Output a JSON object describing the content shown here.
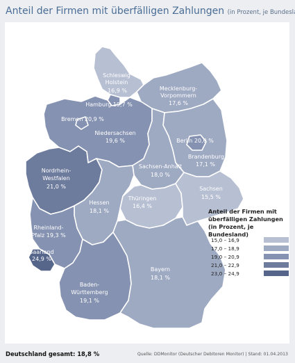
{
  "title": "Anteil der Firmen mit überfälligen Zahlungen",
  "subtitle": "(in Prozent, je Bundesland)",
  "legend": {
    "title": "Anteil der Firmen mit überfälligen Zahlungen (in Prozent, je Bundesland)",
    "ranges": [
      {
        "label": "15,0  –  16,9",
        "color": "#b7bfd2"
      },
      {
        "label": "17,0  –  18,9",
        "color": "#9ea9c2"
      },
      {
        "label": "19,0  –  20,9",
        "color": "#8592b1"
      },
      {
        "label": "21,0  –  22,9",
        "color": "#6d7b9d"
      },
      {
        "label": "23,0  –  24,9",
        "color": "#56658a"
      }
    ]
  },
  "states": [
    {
      "name": "Schleswig Holstein",
      "value": "16,9 %",
      "color": "#b7bfd2"
    },
    {
      "name": "Hamburg",
      "value": "19,7 %",
      "color": "#8592b1"
    },
    {
      "name": "Mecklenburg-Vorpommern",
      "value": "17,6 %",
      "color": "#9ea9c2"
    },
    {
      "name": "Bremen",
      "value": "20,9 %",
      "color": "#8592b1"
    },
    {
      "name": "Niedersachsen",
      "value": "19,6 %",
      "color": "#8592b1"
    },
    {
      "name": "Berlin",
      "value": "20,0 %",
      "color": "#8592b1"
    },
    {
      "name": "Brandenburg",
      "value": "17,1 %",
      "color": "#9ea9c2"
    },
    {
      "name": "Nordrhein-Westfalen",
      "value": "21,0 %",
      "color": "#6d7b9d"
    },
    {
      "name": "Sachsen-Anhalt",
      "value": "18,0 %",
      "color": "#9ea9c2"
    },
    {
      "name": "Sachsen",
      "value": "15,5 %",
      "color": "#b7bfd2"
    },
    {
      "name": "Hessen",
      "value": "18,1 %",
      "color": "#9ea9c2"
    },
    {
      "name": "Thüringen",
      "value": "16,4 %",
      "color": "#b7bfd2"
    },
    {
      "name": "Rheinland-Pfalz",
      "value": "19,3 %",
      "color": "#8592b1"
    },
    {
      "name": "Saarland",
      "value": "24,9 %",
      "color": "#56658a"
    },
    {
      "name": "Bayern",
      "value": "18,1 %",
      "color": "#9ea9c2"
    },
    {
      "name": "Baden-Württemberg",
      "value": "19,1 %",
      "color": "#8592b1"
    }
  ],
  "labels": {
    "sh_1": "Schleswig",
    "sh_2": "Holstein",
    "sh_v": "16,9 %",
    "hh": "Hamburg 19,7 %",
    "mv_1": "Mecklenburg-",
    "mv_2": "Vorpommern",
    "mv_v": "17,6 %",
    "hb": "Bremen 20,9 %",
    "ni_1": "Niedersachsen",
    "ni_v": "19,6 %",
    "be": "Berlin 20,0 %",
    "bb_1": "Brandenburg",
    "bb_v": "17,1 %",
    "nw_1": "Nordrhein-",
    "nw_2": "Westfalen",
    "nw_v": "21,0 %",
    "st_1": "Sachsen-Anhalt",
    "st_v": "18,0 %",
    "sn_1": "Sachsen",
    "sn_v": "15,5 %",
    "he_1": "Hessen",
    "he_v": "18,1 %",
    "th_1": "Thüringen",
    "th_v": "16,4 %",
    "rp_1": "Rheinland-",
    "rp_2": "Pfalz 19,3 %",
    "sl_1": "Saarland",
    "sl_v": "24,9 %",
    "by_1": "Bayern",
    "by_v": "18,1 %",
    "bw_1": "Baden-",
    "bw_2": "Württemberg",
    "bw_v": "19,1 %"
  },
  "footer": {
    "total": "Deutschland gesamt: 18,8 %",
    "source": "Quelle: DDMonitor (Deutscher Debitoren Monitor)  |  Stand: 01.04.2013"
  }
}
